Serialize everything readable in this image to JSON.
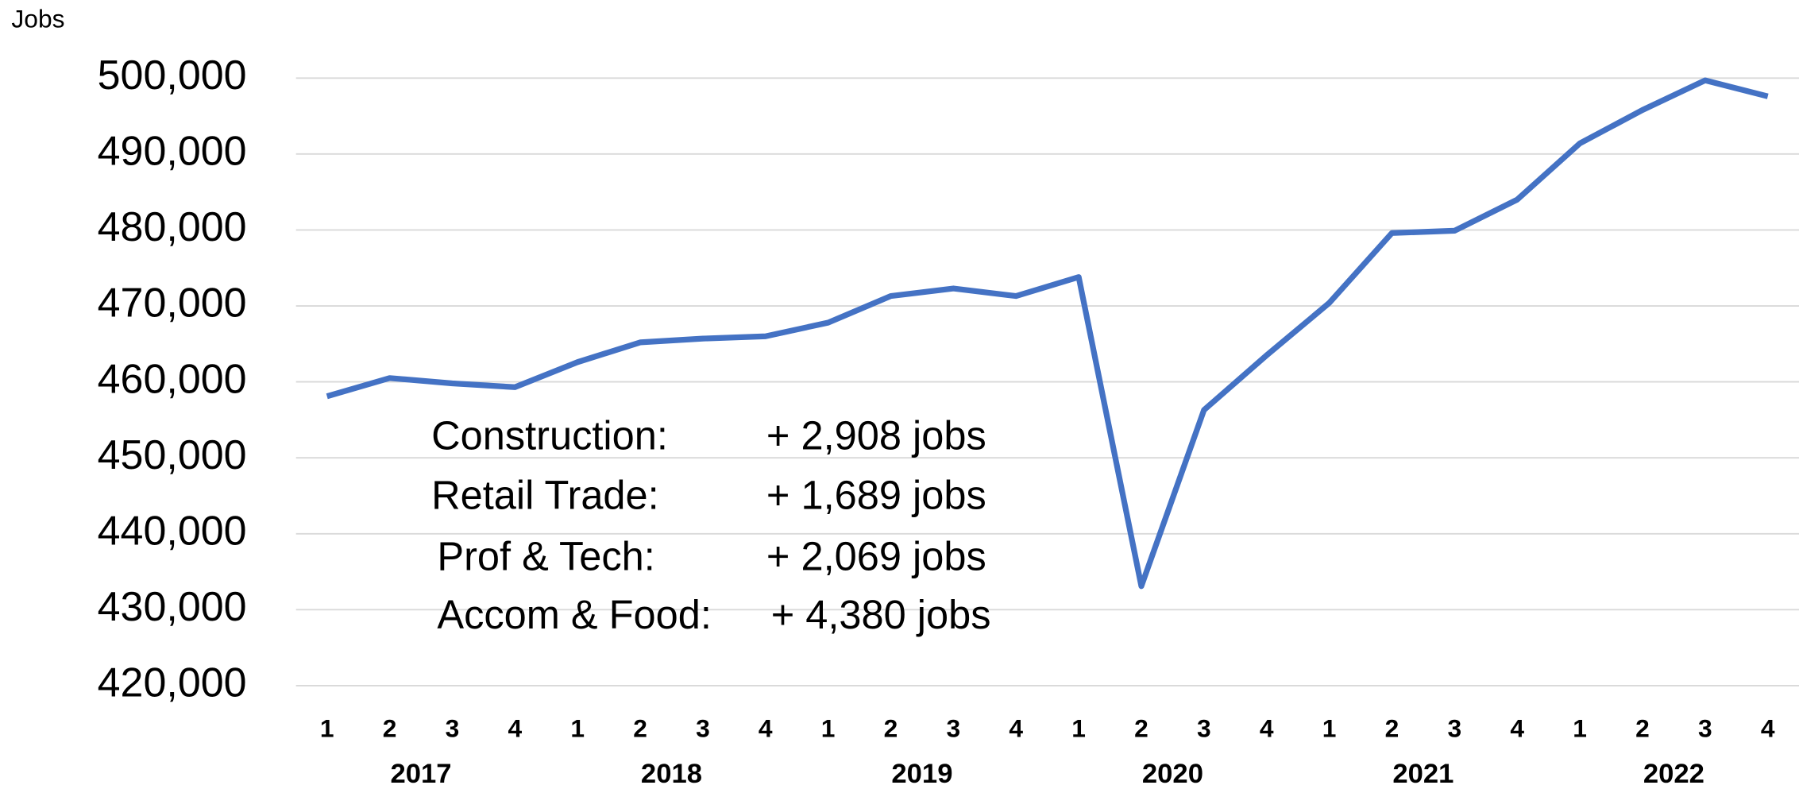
{
  "chart_data": {
    "type": "line",
    "y_axis_label": "Jobs",
    "categories": [
      "1",
      "2",
      "3",
      "4",
      "1",
      "2",
      "3",
      "4",
      "1",
      "2",
      "3",
      "4",
      "1",
      "2",
      "3",
      "4",
      "1",
      "2",
      "3",
      "4",
      "1",
      "2",
      "3",
      "4"
    ],
    "category_groups": [
      "2017",
      "2018",
      "2019",
      "2020",
      "2021",
      "2022"
    ],
    "series": [
      {
        "name": "Jobs",
        "color": "#4472c4",
        "values": [
          458100,
          460500,
          459800,
          459300,
          462600,
          465200,
          465700,
          466000,
          467800,
          471300,
          472300,
          471300,
          473800,
          433100,
          456300,
          463500,
          470400,
          479600,
          479900,
          484000,
          491400,
          495800,
          499700,
          497600
        ]
      }
    ],
    "ylim": [
      420000,
      500000
    ],
    "yticks": [
      {
        "value": 420000,
        "label": "420,000"
      },
      {
        "value": 430000,
        "label": "430,000"
      },
      {
        "value": 440000,
        "label": "440,000"
      },
      {
        "value": 450000,
        "label": "450,000"
      },
      {
        "value": 460000,
        "label": "460,000"
      },
      {
        "value": 470000,
        "label": "470,000"
      },
      {
        "value": 480000,
        "label": "480,000"
      },
      {
        "value": 490000,
        "label": "490,000"
      },
      {
        "value": 500000,
        "label": "500,000"
      }
    ],
    "grid": true,
    "annotations": [
      {
        "sector": "Construction:",
        "change": "+ 2,908 jobs"
      },
      {
        "sector": "Retail Trade:",
        "change": "+ 1,689 jobs"
      },
      {
        "sector": "Prof & Tech:",
        "change": "+ 2,069 jobs"
      },
      {
        "sector": "Accom & Food:",
        "change": "+ 4,380 jobs"
      }
    ]
  }
}
